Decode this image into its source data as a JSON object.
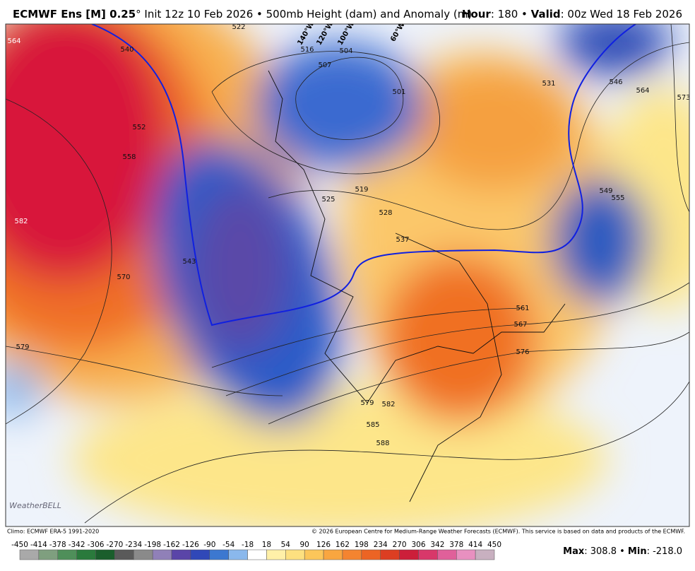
{
  "header": {
    "left": [
      {
        "text": "ECMWF Ens [M] 0.25",
        "bold": true
      },
      {
        "text": "° Init 12z 10 Feb 2026 • 500mb Height (dam) and Anomaly (m)",
        "bold": false
      }
    ],
    "right": [
      {
        "text": "Hour",
        "bold": true
      },
      {
        "text": ": 180 • ",
        "bold": false
      },
      {
        "text": "Valid",
        "bold": true
      },
      {
        "text": ": 00z Wed 18 Feb 2026",
        "bold": false
      }
    ]
  },
  "map": {
    "contour_labels": [
      564,
      540,
      552,
      558,
      582,
      570,
      579,
      543,
      522,
      516,
      507,
      504,
      501,
      519,
      525,
      528,
      537,
      531,
      546,
      564,
      573,
      549,
      555,
      561,
      567,
      576,
      579,
      582,
      585,
      588
    ],
    "longitude_labels": [
      "140°W",
      "120°W",
      "100°W",
      "60°W"
    ],
    "watermark": "WeatherBELL"
  },
  "footer": {
    "left": "Climo: ECMWF ERA-5 1991-2020",
    "right": "© 2026 European Centre for Medium-Range Weather Forecasts (ECMWF). This service is based on data and products of the ECMWF."
  },
  "colorbar": {
    "ticks": [
      -450,
      -414,
      -378,
      -342,
      -306,
      -270,
      -234,
      -198,
      -162,
      -126,
      -90,
      -54,
      -18,
      18,
      54,
      90,
      126,
      162,
      198,
      234,
      270,
      306,
      342,
      378,
      414,
      450
    ],
    "colors": [
      "#a9a9a9",
      "#7f9f7f",
      "#4f8f5a",
      "#2a7a3c",
      "#1a5e2c",
      "#5a5a5a",
      "#8a8a8a",
      "#9080b8",
      "#5a45a8",
      "#3048b8",
      "#3c78d0",
      "#8ab8ec",
      "#ffffff",
      "#fff0a8",
      "#fde080",
      "#fcc65a",
      "#f9a640",
      "#f48430",
      "#ec6424",
      "#dc3e22",
      "#cc1f3a",
      "#d8386a",
      "#e0609a",
      "#e890c0",
      "#c8b0c0"
    ]
  },
  "stats": [
    {
      "text": "Max",
      "bold": true
    },
    {
      "text": ": 308.8 • ",
      "bold": false
    },
    {
      "text": "Min",
      "bold": true
    },
    {
      "text": ": -218.0",
      "bold": false
    }
  ]
}
